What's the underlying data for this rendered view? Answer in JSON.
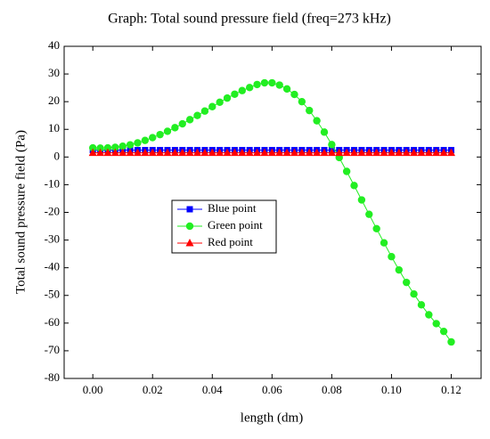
{
  "chart_data": {
    "type": "line",
    "title": "Graph: Total sound pressure field (freq=273 kHz)",
    "x_label": "length (dm)",
    "y_label": "Total sound pressure field (Pa)",
    "x": [
      0,
      0.0025,
      0.005,
      0.0075,
      0.01,
      0.0125,
      0.015,
      0.0175,
      0.02,
      0.0225,
      0.025,
      0.0275,
      0.03,
      0.0325,
      0.035,
      0.0375,
      0.04,
      0.0425,
      0.045,
      0.0475,
      0.05,
      0.0525,
      0.055,
      0.0575,
      0.06,
      0.0625,
      0.065,
      0.0675,
      0.07,
      0.0725,
      0.075,
      0.0775,
      0.08,
      0.0825,
      0.085,
      0.0875,
      0.09,
      0.0925,
      0.095,
      0.0975,
      0.1,
      0.1025,
      0.105,
      0.1075,
      0.11,
      0.1125,
      0.115,
      0.1175,
      0.12
    ],
    "series": [
      {
        "name": "Blue point",
        "color": "#0000ff",
        "marker": "square",
        "values": [
          2.5,
          2.5,
          2.5,
          2.5,
          2.5,
          2.5,
          2.5,
          2.5,
          2.5,
          2.5,
          2.5,
          2.5,
          2.5,
          2.5,
          2.5,
          2.5,
          2.5,
          2.5,
          2.5,
          2.5,
          2.5,
          2.5,
          2.5,
          2.5,
          2.5,
          2.5,
          2.5,
          2.5,
          2.5,
          2.5,
          2.5,
          2.5,
          2.5,
          2.5,
          2.5,
          2.5,
          2.5,
          2.5,
          2.5,
          2.5,
          2.5,
          2.5,
          2.5,
          2.5,
          2.5,
          2.5,
          2.5,
          2.5,
          2.5
        ]
      },
      {
        "name": "Green point",
        "color": "#22ee22",
        "marker": "circle",
        "values": [
          3.3,
          3.2,
          3.3,
          3.5,
          3.9,
          4.4,
          5.1,
          6.0,
          7.0,
          8.1,
          9.3,
          10.6,
          12.0,
          13.5,
          15.0,
          16.6,
          18.2,
          19.8,
          21.3,
          22.7,
          24.0,
          25.1,
          26.2,
          26.8,
          26.8,
          26.0,
          24.6,
          22.6,
          20.0,
          16.8,
          13.1,
          9.0,
          4.5,
          -0.2,
          -5.2,
          -10.3,
          -15.5,
          -20.7,
          -25.9,
          -31.0,
          -36.0,
          -40.8,
          -45.3,
          -49.5,
          -53.4,
          -57.0,
          -60.2,
          -63.0,
          -66.8
        ]
      },
      {
        "name": "Red point",
        "color": "#ff0000",
        "marker": "triangle",
        "values": [
          1.5,
          1.5,
          1.5,
          1.5,
          1.5,
          1.5,
          1.5,
          1.5,
          1.5,
          1.5,
          1.5,
          1.5,
          1.5,
          1.5,
          1.5,
          1.5,
          1.5,
          1.5,
          1.5,
          1.5,
          1.5,
          1.5,
          1.5,
          1.5,
          1.5,
          1.5,
          1.5,
          1.5,
          1.5,
          1.5,
          1.5,
          1.5,
          1.5,
          1.5,
          1.5,
          1.5,
          1.5,
          1.5,
          1.5,
          1.5,
          1.5,
          1.5,
          1.5,
          1.5,
          1.5,
          1.5,
          1.5,
          1.5,
          1.5
        ]
      }
    ],
    "xlim": [
      -0.0096,
      0.13
    ],
    "xticks": [
      {
        "value": 0,
        "label": "0.00"
      },
      0.02,
      0.04,
      0.06,
      0.08,
      {
        "value": 0.1,
        "label": "0.10"
      },
      0.12
    ],
    "ylim": [
      -80,
      40
    ],
    "yticks": [
      40,
      30,
      20,
      10,
      0,
      -10,
      -20,
      -30,
      -40,
      -50,
      -60,
      -70,
      -80
    ],
    "grid": false,
    "legend": "center-left"
  }
}
